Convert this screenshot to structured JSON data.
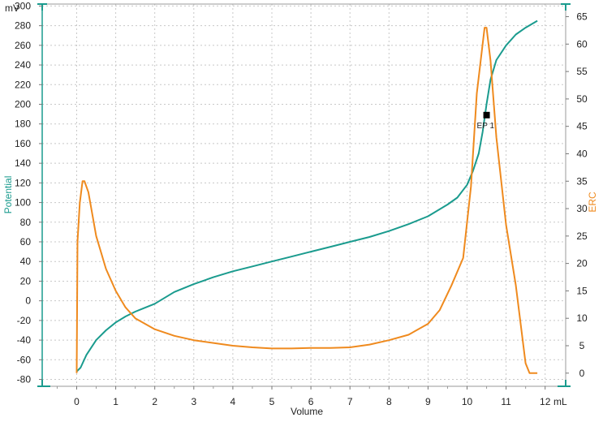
{
  "chart_data": {
    "type": "line",
    "xlabel": "Volume",
    "x_unit": "mL",
    "xlim": [
      -1,
      12.5
    ],
    "x_ticks": [
      0,
      1,
      2,
      3,
      4,
      5,
      6,
      7,
      8,
      9,
      10,
      11,
      12
    ],
    "grid": true,
    "left_axis": {
      "label": "Potential",
      "unit": "mV",
      "ylim": [
        -87,
        302
      ],
      "ticks": [
        -80,
        -60,
        -40,
        -20,
        0,
        20,
        40,
        60,
        80,
        100,
        120,
        140,
        160,
        180,
        200,
        220,
        240,
        260,
        280,
        300
      ],
      "color": "#1a9b8e"
    },
    "right_axis": {
      "label": "ERC",
      "ylim": [
        -2.4,
        67.3
      ],
      "ticks": [
        0,
        5,
        10,
        15,
        20,
        25,
        30,
        35,
        40,
        45,
        50,
        55,
        60,
        65
      ],
      "color": "#ef8a1e"
    },
    "series": [
      {
        "name": "Potential",
        "axis": "left",
        "color": "#1a9b8e",
        "x": [
          0,
          0.1,
          0.25,
          0.5,
          0.75,
          1.0,
          1.25,
          1.5,
          2.0,
          2.5,
          3.0,
          3.5,
          4.0,
          4.5,
          5.0,
          5.5,
          6.0,
          6.5,
          7.0,
          7.5,
          8.0,
          8.5,
          9.0,
          9.5,
          9.75,
          10.0,
          10.15,
          10.3,
          10.4,
          10.5,
          10.6,
          10.75,
          11.0,
          11.25,
          11.5,
          11.8
        ],
        "y": [
          -72,
          -68,
          -55,
          -40,
          -30,
          -22,
          -16,
          -11,
          -3,
          9,
          17,
          24,
          30,
          35,
          40,
          45,
          50,
          55,
          60,
          65,
          71,
          78,
          86,
          98,
          105,
          118,
          132,
          150,
          172,
          200,
          225,
          245,
          260,
          271,
          278,
          285
        ]
      },
      {
        "name": "ERC",
        "axis": "right",
        "color": "#ef8a1e",
        "x": [
          0,
          0.02,
          0.08,
          0.15,
          0.2,
          0.3,
          0.5,
          0.75,
          1.0,
          1.25,
          1.5,
          2.0,
          2.5,
          3.0,
          3.5,
          4.0,
          4.5,
          5.0,
          5.5,
          6.0,
          6.5,
          7.0,
          7.5,
          8.0,
          8.5,
          9.0,
          9.3,
          9.6,
          9.9,
          10.1,
          10.25,
          10.35,
          10.45,
          10.5,
          10.6,
          10.75,
          11.0,
          11.25,
          11.5,
          11.6,
          11.8
        ],
        "y": [
          0,
          24,
          31,
          35,
          35,
          33,
          25,
          19,
          15,
          12,
          10,
          8,
          6.8,
          6,
          5.5,
          5,
          4.7,
          4.5,
          4.5,
          4.6,
          4.6,
          4.7,
          5.2,
          6,
          7,
          9,
          11.5,
          16,
          21,
          34,
          51,
          57,
          63,
          63,
          57,
          43,
          27,
          16,
          1.8,
          0,
          0
        ]
      }
    ],
    "annotations": [
      {
        "label": "EP 1",
        "x": 10.5,
        "y": 189
      }
    ]
  }
}
